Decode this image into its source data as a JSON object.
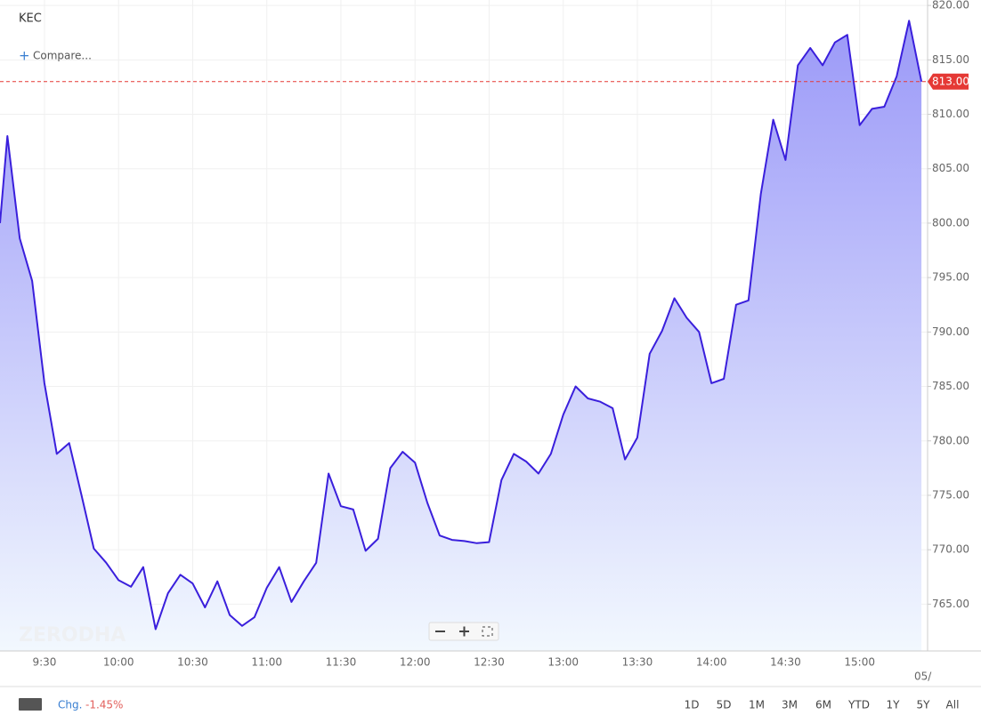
{
  "chart_data": {
    "type": "area",
    "title": "KEC",
    "compare": "Compare...",
    "color": "#3a1fdc",
    "fill_top": "#9b99f8",
    "fill_bottom": "#f2f8fe",
    "grid": true,
    "x": [
      552,
      555,
      560,
      565,
      570,
      575,
      580,
      585,
      590,
      595,
      600,
      605,
      610,
      615,
      620,
      625,
      630,
      635,
      640,
      645,
      650,
      655,
      660,
      665,
      670,
      675,
      680,
      685,
      690,
      695,
      700,
      705,
      710,
      715,
      720,
      725,
      730,
      735,
      740,
      745,
      750,
      755,
      760,
      765,
      770,
      775,
      780,
      785,
      790,
      795,
      800,
      805,
      810,
      815,
      820,
      825,
      830,
      835,
      840,
      845,
      850,
      855,
      860,
      865,
      870,
      875,
      880,
      885,
      890,
      895,
      900,
      905,
      910,
      915,
      920,
      925
    ],
    "values": [
      800,
      808,
      798.6,
      794.7,
      785.3,
      778.8,
      779.8,
      775,
      770.1,
      768.8,
      767.2,
      766.6,
      768.4,
      762.7,
      766,
      767.7,
      766.9,
      764.7,
      767.1,
      764,
      763,
      763.8,
      766.5,
      768.4,
      765.2,
      767.1,
      768.8,
      777,
      774,
      773.7,
      769.9,
      771,
      777.5,
      779,
      778,
      774.3,
      771.3,
      770.9,
      770.8,
      770.6,
      770.7,
      776.4,
      778.8,
      778.1,
      777,
      778.8,
      782.4,
      785,
      783.9,
      783.6,
      783,
      778.3,
      780.3,
      788,
      790.1,
      793.1,
      791.3,
      790,
      785.3,
      785.7,
      792.5,
      792.9,
      802.7,
      809.5,
      805.8,
      814.5,
      816.1,
      814.5,
      816.6,
      817.3,
      809,
      810.5,
      810.7,
      813.5,
      818.6,
      813
    ],
    "xlim": [
      552,
      927.5
    ],
    "xticks": [
      {
        "value": 570,
        "label": "9:30"
      },
      {
        "value": 600,
        "label": "10:00"
      },
      {
        "value": 630,
        "label": "10:30"
      },
      {
        "value": 660,
        "label": "11:00"
      },
      {
        "value": 690,
        "label": "11:30"
      },
      {
        "value": 720,
        "label": "12:00"
      },
      {
        "value": 750,
        "label": "12:30"
      },
      {
        "value": 780,
        "label": "13:00"
      },
      {
        "value": 810,
        "label": "13:30"
      },
      {
        "value": 840,
        "label": "14:00"
      },
      {
        "value": 870,
        "label": "14:30"
      },
      {
        "value": 900,
        "label": "15:00"
      }
    ],
    "ylim": [
      760.7,
      820.5
    ],
    "yticks": [
      {
        "value": 765,
        "label": "765.00"
      },
      {
        "value": 770,
        "label": "770.00"
      },
      {
        "value": 775,
        "label": "775.00"
      },
      {
        "value": 780,
        "label": "780.00"
      },
      {
        "value": 785,
        "label": "785.00"
      },
      {
        "value": 790,
        "label": "790.00"
      },
      {
        "value": 795,
        "label": "795.00"
      },
      {
        "value": 800,
        "label": "800.00"
      },
      {
        "value": 805,
        "label": "805.00"
      },
      {
        "value": 810,
        "label": "810.00"
      },
      {
        "value": 815,
        "label": "815.00"
      },
      {
        "value": 820,
        "label": "820.00"
      }
    ],
    "last_price": {
      "value": 813,
      "label": "813.00"
    },
    "date_label": "05/",
    "watermark": "ZERODHA"
  },
  "footer": {
    "change_label": "Chg.",
    "change": "-1.45%",
    "ranges": [
      "1D",
      "5D",
      "1M",
      "3M",
      "6M",
      "YTD",
      "1Y",
      "5Y",
      "All"
    ]
  }
}
